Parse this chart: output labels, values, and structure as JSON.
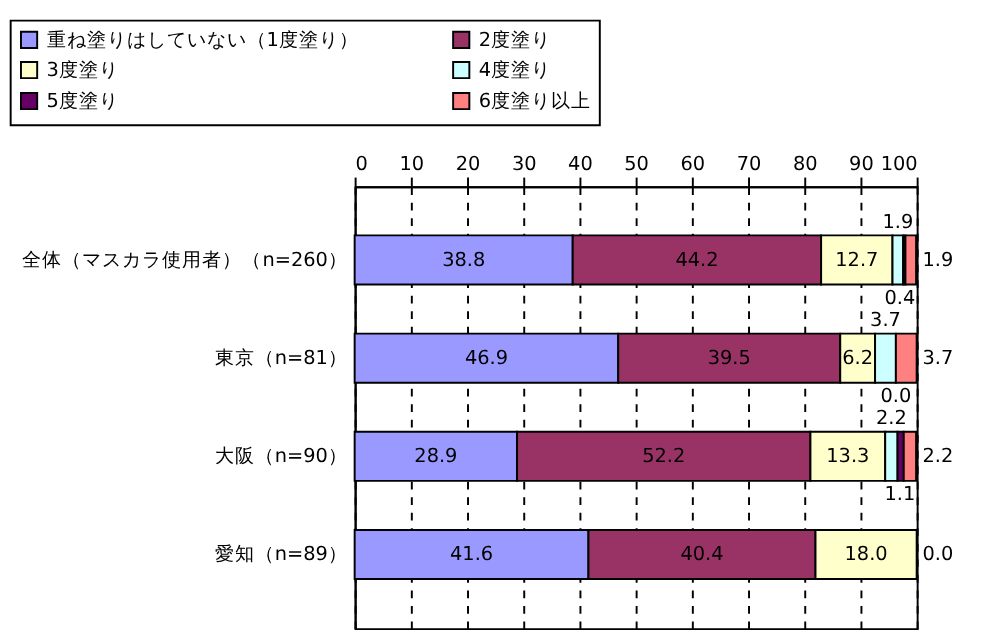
{
  "chart_data": {
    "type": "bar",
    "orientation": "horizontal",
    "stacked": true,
    "categories": [
      "全体（マスカラ使用者）（n=260）",
      "東京（n=81）",
      "大阪（n=90）",
      "愛知（n=89）"
    ],
    "series": [
      {
        "name": "重ね塗りはしていない（1度塗り）",
        "color": "#9999ff",
        "values": [
          38.8,
          46.9,
          28.9,
          41.6
        ],
        "value_labels": [
          "38.8",
          "46.9",
          "28.9",
          "41.6"
        ]
      },
      {
        "name": "2度塗り",
        "color": "#993366",
        "values": [
          44.2,
          39.5,
          52.2,
          40.4
        ],
        "value_labels": [
          "44.2",
          "39.5",
          "52.2",
          "40.4"
        ]
      },
      {
        "name": "3度塗り",
        "color": "#ffffcc",
        "values": [
          12.7,
          6.2,
          13.3,
          18.0
        ],
        "value_labels": [
          "12.7",
          "6.2",
          "13.3",
          "18.0"
        ]
      },
      {
        "name": "4度塗り",
        "color": "#ccffff",
        "values": [
          1.9,
          3.7,
          2.2,
          0.0
        ],
        "value_labels": [
          "1.9",
          "3.7",
          "2.2",
          null
        ]
      },
      {
        "name": "5度塗り",
        "color": "#660066",
        "values": [
          0.4,
          0.0,
          1.1,
          0.0
        ],
        "value_labels": [
          "0.4",
          "0.0",
          "1.1",
          null
        ]
      },
      {
        "name": "6度塗り以上",
        "color": "#ff8080",
        "values": [
          1.9,
          3.7,
          2.2,
          0.0
        ],
        "value_labels": [
          "1.9",
          "3.7",
          "2.2",
          "0.0"
        ]
      }
    ],
    "xlim": [
      0,
      100
    ],
    "xticks": [
      0,
      10,
      20,
      30,
      40,
      50,
      60,
      70,
      80,
      90,
      100
    ],
    "grid": "x",
    "legend": "top"
  }
}
